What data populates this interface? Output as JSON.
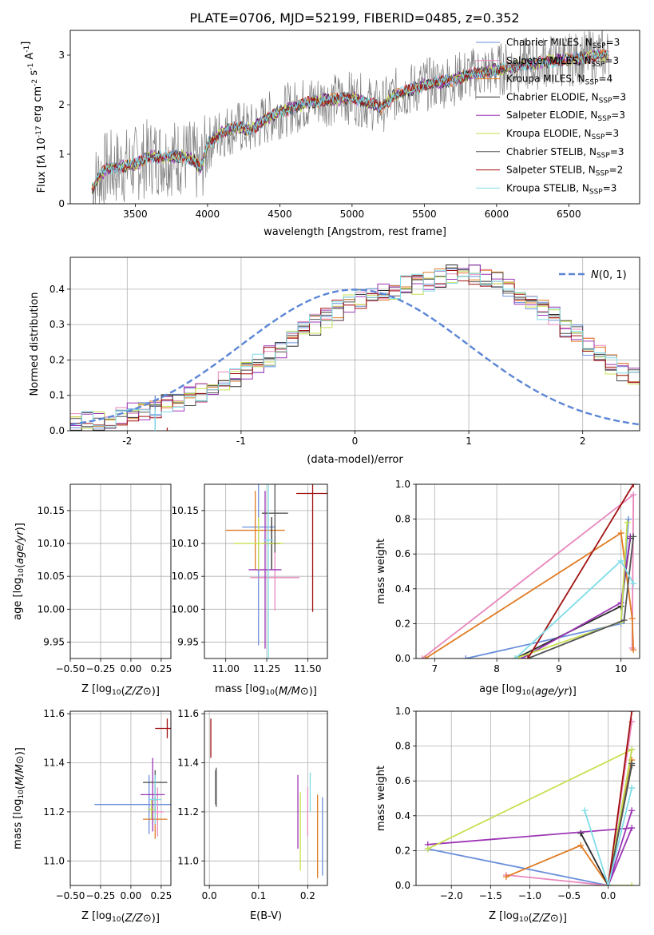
{
  "figure_title": "PLATE=0706, MJD=52199, FIBERID=0485, z=0.352",
  "colors": {
    "Chabrier MILES": "#6A8FDB",
    "Salpeter MILES": "#E887BD",
    "Kroupa MILES": "#E07B22",
    "Chabrier ELODIE": "#2C2C2C",
    "Salpeter ELODIE": "#9C36B5",
    "Kroupa ELODIE": "#C8E050",
    "Chabrier STELIB": "#555555",
    "Salpeter STELIB": "#A01010",
    "Kroupa STELIB": "#7FDCE8",
    "data": "#7F7F7F",
    "normal": "#5B86D6"
  },
  "chart_data": [
    {
      "type": "line",
      "id": "spectrum",
      "xlabel": "wavelength [Angstrom, rest frame]",
      "ylabel": "Flux [f_λ 10^-17 erg cm^-2 s^-1 A^-1]",
      "xlim": [
        3050,
        6990
      ],
      "ylim": [
        0,
        3.5
      ],
      "xticks": [
        3500,
        4000,
        4500,
        5000,
        5500,
        6000,
        6500
      ],
      "yticks": [
        0,
        1,
        2,
        3
      ],
      "grid": false,
      "legend_position": "right",
      "legend": [
        {
          "label": "Chabrier MILES, N",
          "sub": "SSP",
          "suffix": "=3"
        },
        {
          "label": "Salpeter MILES, N",
          "sub": "SSP",
          "suffix": "=3"
        },
        {
          "label": "Kroupa MILES, N",
          "sub": "SSP",
          "suffix": "=4"
        },
        {
          "label": "Chabrier ELODIE, N",
          "sub": "SSP",
          "suffix": "=3"
        },
        {
          "label": "Salpeter ELODIE, N",
          "sub": "SSP",
          "suffix": "=3"
        },
        {
          "label": "Kroupa ELODIE, N",
          "sub": "SSP",
          "suffix": "=3"
        },
        {
          "label": "Chabrier STELIB, N",
          "sub": "SSP",
          "suffix": "=3"
        },
        {
          "label": "Salpeter STELIB, N",
          "sub": "SSP",
          "suffix": "=2"
        },
        {
          "label": "Kroupa STELIB, N",
          "sub": "SSP",
          "suffix": "=3"
        }
      ],
      "model_continuum": [
        [
          3200,
          0.3
        ],
        [
          3250,
          0.55
        ],
        [
          3300,
          0.7
        ],
        [
          3400,
          0.75
        ],
        [
          3500,
          0.8
        ],
        [
          3600,
          0.95
        ],
        [
          3700,
          0.95
        ],
        [
          3800,
          0.95
        ],
        [
          3900,
          0.9
        ],
        [
          3950,
          0.7
        ],
        [
          4000,
          1.2
        ],
        [
          4100,
          1.45
        ],
        [
          4200,
          1.55
        ],
        [
          4300,
          1.5
        ],
        [
          4400,
          1.7
        ],
        [
          4500,
          1.85
        ],
        [
          4600,
          1.95
        ],
        [
          4700,
          2.05
        ],
        [
          4800,
          2.1
        ],
        [
          4900,
          2.1
        ],
        [
          5000,
          2.15
        ],
        [
          5100,
          2.05
        ],
        [
          5200,
          1.95
        ],
        [
          5300,
          2.2
        ],
        [
          5400,
          2.3
        ],
        [
          5500,
          2.4
        ],
        [
          5600,
          2.45
        ],
        [
          5700,
          2.5
        ],
        [
          5800,
          2.6
        ],
        [
          5900,
          2.65
        ],
        [
          6000,
          2.7
        ],
        [
          6100,
          2.75
        ],
        [
          6200,
          2.8
        ],
        [
          6300,
          2.85
        ],
        [
          6400,
          2.9
        ],
        [
          6500,
          2.9
        ],
        [
          6600,
          2.95
        ],
        [
          6700,
          3.0
        ],
        [
          6780,
          3.0
        ]
      ]
    },
    {
      "type": "line",
      "id": "residuals",
      "xlabel": "(data-model)/error",
      "ylabel": "Normed distribution",
      "xlim": [
        -2.5,
        2.5
      ],
      "ylim": [
        0,
        0.49
      ],
      "xticks": [
        -2,
        -1,
        0,
        1,
        2
      ],
      "yticks": [
        0.0,
        0.1,
        0.2,
        0.3,
        0.4
      ],
      "grid": true,
      "legend": [
        {
          "label": "N(0,1)"
        }
      ],
      "bin_width": 0.1,
      "bin_start": -2.5,
      "histogram_base": [
        0.02,
        0.025,
        0.03,
        0.035,
        0.04,
        0.05,
        0.055,
        0.065,
        0.075,
        0.085,
        0.095,
        0.11,
        0.12,
        0.14,
        0.15,
        0.17,
        0.19,
        0.21,
        0.23,
        0.26,
        0.28,
        0.3,
        0.32,
        0.34,
        0.36,
        0.37,
        0.38,
        0.39,
        0.4,
        0.41,
        0.415,
        0.42,
        0.43,
        0.44,
        0.44,
        0.44,
        0.43,
        0.42,
        0.4,
        0.38,
        0.36,
        0.34,
        0.32,
        0.29,
        0.27,
        0.24,
        0.22,
        0.19,
        0.17,
        0.15,
        0.13,
        0.11,
        0.1,
        0.085,
        0.075,
        0.065,
        0.06,
        0.05,
        0.045,
        0.04
      ]
    },
    {
      "type": "scatter",
      "id": "age-vs-Z",
      "xlabel": "Z [log10(Z/Z⊙)]",
      "ylabel": "age [log10(age/yr)]",
      "xlim": [
        -0.5,
        0.33
      ],
      "ylim": [
        9.925,
        10.19
      ],
      "xticks": [
        -0.5,
        -0.25,
        0.0,
        0.25
      ],
      "xtick_labels": [
        "−0.50",
        "−0.25",
        "0.00",
        "0.25"
      ],
      "yticks": [
        9.95,
        10.0,
        10.05,
        10.1,
        10.15
      ],
      "grid": true,
      "points": [
        {
          "model": "Chabrier MILES",
          "x": 0.2,
          "xerr": 0.48,
          "y": 10.125,
          "yerr": 0.2
        },
        {
          "model": "Salpeter MILES",
          "x": 0.21,
          "xerr": 0.1,
          "y": 10.048,
          "yerr": 0.06
        },
        {
          "model": "Kroupa MILES",
          "x": 0.2,
          "xerr": 0.1,
          "y": 10.12,
          "yerr": 0.06
        },
        {
          "model": "Chabrier ELODIE",
          "x": 0.2,
          "xerr": 0.02,
          "y": 10.1,
          "yerr": 0.04
        },
        {
          "model": "Salpeter ELODIE",
          "x": 0.2,
          "xerr": 0.1,
          "y": 10.06,
          "yerr": 0.12
        },
        {
          "model": "Kroupa ELODIE",
          "x": 0.17,
          "xerr": 0.03,
          "y": 10.1,
          "yerr": 0.03
        },
        {
          "model": "Chabrier STELIB",
          "x": 0.22,
          "xerr": 0.1,
          "y": 10.146,
          "yerr": 0.03
        },
        {
          "model": "Salpeter STELIB",
          "x": 0.3,
          "xerr": 0.1,
          "y": 10.176,
          "yerr": 0.1
        },
        {
          "model": "Kroupa STELIB",
          "x": 0.2,
          "xerr": 0.05,
          "y": 10.105,
          "yerr": 0.2
        }
      ]
    },
    {
      "type": "scatter",
      "id": "age-vs-mass",
      "xlabel": "mass [log10(M/M⊙)]",
      "xlim": [
        10.87,
        11.62
      ],
      "ylim": [
        9.925,
        10.19
      ],
      "xticks": [
        11.0,
        11.25,
        11.5
      ],
      "yticks": [
        9.95,
        10.0,
        10.05,
        10.1,
        10.15
      ],
      "grid": true,
      "points": [
        {
          "model": "Chabrier MILES",
          "x": 11.2,
          "xerr": 0.1,
          "y": 10.125,
          "yerr": 0.18
        },
        {
          "model": "Salpeter MILES",
          "x": 11.3,
          "xerr": 0.15,
          "y": 10.048,
          "yerr": 0.05
        },
        {
          "model": "Kroupa MILES",
          "x": 11.18,
          "xerr": 0.18,
          "y": 10.12,
          "yerr": 0.06
        },
        {
          "model": "Chabrier ELODIE",
          "x": 11.28,
          "xerr": 0.05,
          "y": 10.1,
          "yerr": 0.04
        },
        {
          "model": "Salpeter ELODIE",
          "x": 11.24,
          "xerr": 0.1,
          "y": 10.06,
          "yerr": 0.12
        },
        {
          "model": "Kroupa ELODIE",
          "x": 11.2,
          "xerr": 0.15,
          "y": 10.1,
          "yerr": 0.04
        },
        {
          "model": "Chabrier STELIB",
          "x": 11.3,
          "xerr": 0.08,
          "y": 10.146,
          "yerr": 0.06
        },
        {
          "model": "Salpeter STELIB",
          "x": 11.53,
          "xerr": 0.1,
          "y": 10.176,
          "yerr": 0.18
        },
        {
          "model": "Kroupa STELIB",
          "x": 11.26,
          "xerr": 0.03,
          "y": 10.105,
          "yerr": 0.2
        }
      ]
    },
    {
      "type": "line",
      "id": "weight-vs-age",
      "xlabel": "age [log10(age/yr)]",
      "ylabel": "mass weight",
      "xlim": [
        6.7,
        10.3
      ],
      "ylim": [
        0.0,
        1.0
      ],
      "xticks": [
        7,
        8,
        9,
        10
      ],
      "yticks": [
        0.0,
        0.2,
        0.4,
        0.6,
        0.8,
        1.0
      ],
      "grid": true,
      "series": [
        {
          "model": "Chabrier MILES",
          "x": [
            7.5,
            10.0,
            10.12
          ],
          "y": [
            0.0,
            0.2,
            0.8
          ]
        },
        {
          "model": "Salpeter MILES",
          "x": [
            6.8,
            10.2,
            10.18
          ],
          "y": [
            0.0,
            0.94,
            0.06
          ]
        },
        {
          "model": "Kroupa MILES",
          "x": [
            6.85,
            10.0,
            10.18,
            10.2
          ],
          "y": [
            0.0,
            0.72,
            0.23,
            0.05
          ]
        },
        {
          "model": "Chabrier ELODIE",
          "x": [
            8.3,
            10.0,
            10.15
          ],
          "y": [
            0.0,
            0.3,
            0.69
          ]
        },
        {
          "model": "Salpeter ELODIE",
          "x": [
            8.4,
            10.0,
            10.15
          ],
          "y": [
            0.0,
            0.32,
            0.7
          ]
        },
        {
          "model": "Kroupa ELODIE",
          "x": [
            8.3,
            10.0,
            10.1
          ],
          "y": [
            0.0,
            0.21,
            0.78
          ]
        },
        {
          "model": "Chabrier STELIB",
          "x": [
            8.5,
            10.05,
            10.2
          ],
          "y": [
            0.0,
            0.22,
            0.7
          ]
        },
        {
          "model": "Salpeter STELIB",
          "x": [
            8.5,
            10.2
          ],
          "y": [
            0.0,
            1.0
          ]
        },
        {
          "model": "Kroupa STELIB",
          "x": [
            8.3,
            10.0,
            10.2
          ],
          "y": [
            0.0,
            0.56,
            0.43
          ]
        }
      ]
    },
    {
      "type": "scatter",
      "id": "mass-vs-Z",
      "xlabel": "Z [log10(Z/Z⊙)]",
      "ylabel": "mass [log10(M/M⊙)]",
      "xlim": [
        -0.5,
        0.33
      ],
      "ylim": [
        10.9,
        11.61
      ],
      "xticks": [
        -0.5,
        -0.25,
        0.0,
        0.25
      ],
      "xtick_labels": [
        "−0.50",
        "−0.25",
        "0.00",
        "0.25"
      ],
      "yticks": [
        11.0,
        11.2,
        11.4,
        11.6
      ],
      "grid": true,
      "points": [
        {
          "model": "Chabrier MILES",
          "x": 0.15,
          "xerr": 0.45,
          "y": 11.23,
          "yerr": 0.12
        },
        {
          "model": "Salpeter MILES",
          "x": 0.22,
          "xerr": 0.05,
          "y": 11.2,
          "yerr": 0.1
        },
        {
          "model": "Kroupa MILES",
          "x": 0.2,
          "xerr": 0.1,
          "y": 11.17,
          "yerr": 0.08
        },
        {
          "model": "Chabrier ELODIE",
          "x": 0.2,
          "xerr": 0.02,
          "y": 11.25,
          "yerr": 0.05
        },
        {
          "model": "Salpeter ELODIE",
          "x": 0.18,
          "xerr": 0.1,
          "y": 11.27,
          "yerr": 0.15
        },
        {
          "model": "Kroupa ELODIE",
          "x": 0.17,
          "xerr": 0.03,
          "y": 11.21,
          "yerr": 0.04
        },
        {
          "model": "Chabrier STELIB",
          "x": 0.2,
          "xerr": 0.1,
          "y": 11.32,
          "yerr": 0.05
        },
        {
          "model": "Salpeter STELIB",
          "x": 0.3,
          "xerr": 0.1,
          "y": 11.54,
          "yerr": 0.04
        },
        {
          "model": "Kroupa STELIB",
          "x": 0.2,
          "xerr": 0.05,
          "y": 11.25,
          "yerr": 0.1
        }
      ]
    },
    {
      "type": "scatter",
      "id": "mass-vs-EBV",
      "xlabel": "E(B-V)",
      "xlim": [
        -0.01,
        0.24
      ],
      "ylim": [
        10.9,
        11.61
      ],
      "xticks": [
        0.0,
        0.1,
        0.2
      ],
      "yticks": [
        11.0,
        11.2,
        11.4,
        11.6
      ],
      "grid": true,
      "points": [
        {
          "model": "Chabrier MILES",
          "x": 0.23,
          "y": 11.1,
          "yerr": 0.16
        },
        {
          "model": "Salpeter MILES",
          "x": 0.2,
          "y": 11.2,
          "yerr": 0.1
        },
        {
          "model": "Kroupa MILES",
          "x": 0.22,
          "y": 11.1,
          "yerr": 0.17
        },
        {
          "model": "Chabrier ELODIE",
          "x": 0.013,
          "y": 11.3,
          "yerr": 0.07
        },
        {
          "model": "Salpeter ELODIE",
          "x": 0.18,
          "y": 11.2,
          "yerr": 0.15
        },
        {
          "model": "Kroupa ELODIE",
          "x": 0.185,
          "y": 11.12,
          "yerr": 0.16
        },
        {
          "model": "Chabrier STELIB",
          "x": 0.014,
          "y": 11.3,
          "yerr": 0.08
        },
        {
          "model": "Salpeter STELIB",
          "x": 0.003,
          "y": 11.5,
          "yerr": 0.08
        },
        {
          "model": "Kroupa STELIB",
          "x": 0.205,
          "y": 11.28,
          "yerr": 0.08
        }
      ]
    },
    {
      "type": "line",
      "id": "weight-vs-Z",
      "xlabel": "Z [log10(Z/Z⊙)]",
      "ylabel": "mass weight",
      "xlim": [
        -2.45,
        0.4
      ],
      "ylim": [
        0.0,
        1.0
      ],
      "xticks": [
        -2.0,
        -1.5,
        -1.0,
        -0.5,
        0.0
      ],
      "xtick_labels": [
        "−2.0",
        "−1.5",
        "−1.0",
        "−0.5",
        "0.0"
      ],
      "yticks": [
        0.0,
        0.2,
        0.4,
        0.6,
        0.8,
        1.0
      ],
      "grid": true,
      "series": [
        {
          "model": "Chabrier MILES",
          "x": [
            -2.3,
            0.0,
            0.3
          ],
          "y": [
            0.21,
            0.0,
            0.78
          ]
        },
        {
          "model": "Salpeter MILES",
          "x": [
            -1.3,
            0.0,
            0.3
          ],
          "y": [
            0.06,
            0.0,
            0.94
          ]
        },
        {
          "model": "Kroupa MILES",
          "x": [
            -1.3,
            -0.35,
            0.0,
            0.3
          ],
          "y": [
            0.05,
            0.23,
            0.0,
            0.72
          ]
        },
        {
          "model": "Chabrier ELODIE",
          "x": [
            -0.35,
            0.0,
            0.3
          ],
          "y": [
            0.3,
            0.0,
            0.69
          ]
        },
        {
          "model": "Salpeter ELODIE",
          "x": [
            -2.3,
            0.3,
            0.0,
            0.3
          ],
          "y": [
            0.235,
            0.33,
            0.0,
            0.43
          ]
        },
        {
          "model": "Kroupa ELODIE",
          "x": [
            -2.3,
            0.3,
            0.0,
            0.3
          ],
          "y": [
            0.21,
            0.78,
            0.0,
            0.0
          ]
        },
        {
          "model": "Chabrier STELIB",
          "x": [
            0.0,
            0.3
          ],
          "y": [
            0.0,
            0.7
          ]
        },
        {
          "model": "Salpeter STELIB",
          "x": [
            0.0,
            0.3
          ],
          "y": [
            0.0,
            1.0
          ]
        },
        {
          "model": "Kroupa STELIB",
          "x": [
            -0.3,
            0.0,
            0.3
          ],
          "y": [
            0.43,
            0.0,
            0.56
          ]
        }
      ]
    }
  ]
}
